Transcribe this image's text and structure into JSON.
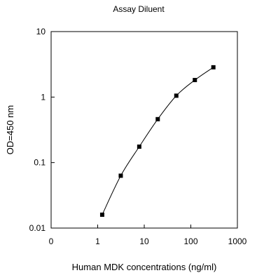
{
  "chart_data": {
    "type": "scatter",
    "title": "Assay Diluent",
    "xlabel": "Human MDK concentrations (ng/ml)",
    "ylabel": "OD=450 nm",
    "x_scale": "log",
    "y_scale": "log",
    "xlim": [
      0.1,
      1000
    ],
    "ylim": [
      0.01,
      10
    ],
    "x_ticks": [
      {
        "value": 0.1,
        "label": "0"
      },
      {
        "value": 1,
        "label": "1"
      },
      {
        "value": 10,
        "label": "10"
      },
      {
        "value": 100,
        "label": "100"
      },
      {
        "value": 1000,
        "label": "1000"
      }
    ],
    "y_ticks": [
      {
        "value": 0.01,
        "label": "0.01"
      },
      {
        "value": 0.1,
        "label": "0.1"
      },
      {
        "value": 1,
        "label": "1"
      },
      {
        "value": 10,
        "label": "10"
      }
    ],
    "grid": false,
    "line_connected": true,
    "marker": "square",
    "color": "#000000",
    "series": [
      {
        "x": [
          1.25,
          3.13,
          7.81,
          19.5,
          48.8,
          122,
          305
        ],
        "y": [
          0.016,
          0.063,
          0.175,
          0.46,
          1.05,
          1.82,
          2.85
        ]
      }
    ]
  }
}
